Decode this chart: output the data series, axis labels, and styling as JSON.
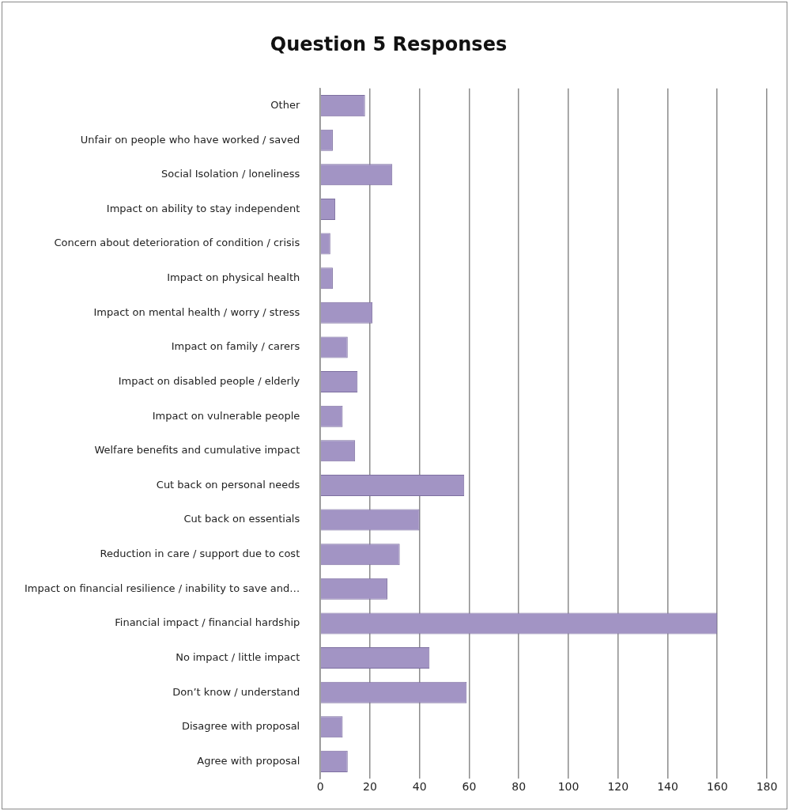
{
  "chart_data": {
    "type": "bar",
    "orientation": "horizontal",
    "title": "Question 5 Responses",
    "categories": [
      "Other",
      "Unfair on people who have worked / saved",
      "Social Isolation / loneliness",
      "Impact on ability to stay independent",
      "Concern about deterioration of condition / crisis",
      "Impact on physical health",
      "Impact on mental health / worry / stress",
      "Impact on family / carers",
      "Impact on disabled people / elderly",
      "Impact on vulnerable people",
      "Welfare benefits and cumulative impact",
      "Cut back on personal needs",
      "Cut back on essentials",
      "Reduction in care / support due to cost",
      "Impact on financial resilience / inability to save and…",
      "Financial impact / financial hardship",
      "No impact / little impact",
      "Don’t know / understand",
      "Disagree with proposal",
      "Agree with proposal"
    ],
    "values": [
      18,
      5,
      29,
      6,
      4,
      5,
      21,
      11,
      15,
      9,
      14,
      58,
      40,
      32,
      27,
      160,
      44,
      59,
      9,
      11
    ],
    "color": "#a294c4",
    "xlim": [
      0,
      180
    ],
    "xticks": [
      0,
      20,
      40,
      60,
      80,
      100,
      120,
      140,
      160,
      180
    ],
    "grid": "x",
    "legend": false
  }
}
